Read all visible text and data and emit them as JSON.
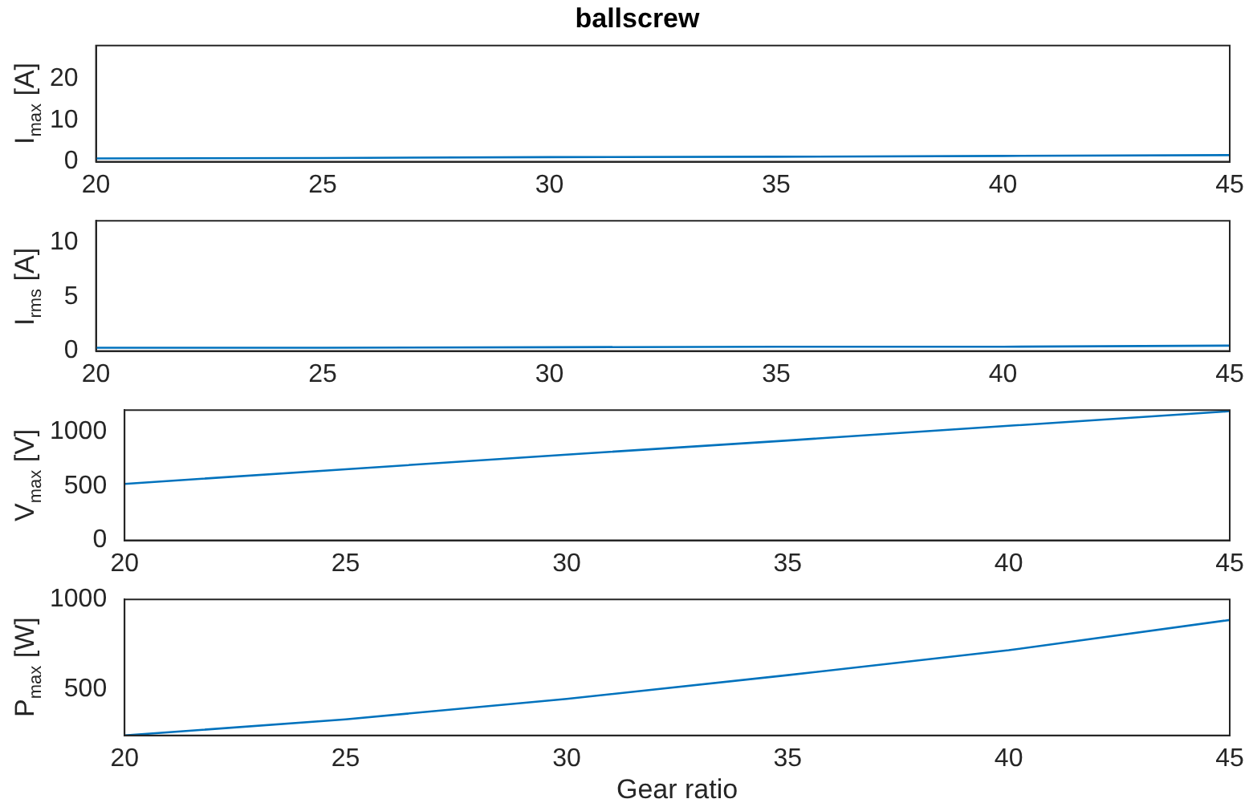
{
  "chart_data": [
    {
      "type": "line",
      "title": "ballscrew",
      "ylabel": "I$_{max}$  [A]",
      "x": [
        20,
        25,
        30,
        35,
        40,
        45
      ],
      "series": [
        {
          "color": "#0072bd",
          "values": [
            0.8,
            0.9,
            1.1,
            1.2,
            1.4,
            1.6
          ]
        }
      ],
      "xlim": [
        20,
        45
      ],
      "xticks": [
        20,
        25,
        30,
        35,
        40,
        45
      ],
      "ylim": [
        0,
        28
      ],
      "yticks": [
        0,
        10,
        20
      ],
      "marker": "none"
    },
    {
      "type": "line",
      "ylabel": "I$_{rms}$  [A]",
      "x": [
        20,
        25,
        30,
        35,
        40,
        45
      ],
      "series": [
        {
          "color": "#0072bd",
          "values": [
            0.3,
            0.3,
            0.35,
            0.4,
            0.4,
            0.5
          ]
        }
      ],
      "xlim": [
        20,
        45
      ],
      "xticks": [
        20,
        25,
        30,
        35,
        40,
        45
      ],
      "ylim": [
        0,
        12
      ],
      "yticks": [
        0,
        5,
        10
      ],
      "marker": "none"
    },
    {
      "type": "line",
      "ylabel": "V$_{max}$  [V]",
      "x": [
        20,
        25,
        30,
        35,
        40,
        45
      ],
      "series": [
        {
          "color": "#0072bd",
          "values": [
            520,
            655,
            790,
            920,
            1055,
            1190
          ]
        }
      ],
      "xlim": [
        20,
        45
      ],
      "xticks": [
        20,
        25,
        30,
        35,
        40,
        45
      ],
      "ylim": [
        0,
        1200
      ],
      "yticks": [
        0,
        500,
        1000
      ],
      "marker": "none"
    },
    {
      "type": "line",
      "ylabel": "P$_{max}$  [W]",
      "xlabel": "Gear ratio",
      "x": [
        20,
        25,
        30,
        35,
        40,
        45
      ],
      "series": [
        {
          "color": "#0072bd",
          "values": [
            240,
            330,
            444,
            577,
            716,
            885
          ]
        }
      ],
      "xlim": [
        20,
        45
      ],
      "xticks": [
        20,
        25,
        30,
        35,
        40,
        45
      ],
      "ylim": [
        240,
        1000
      ],
      "yticks": [
        500,
        1000
      ],
      "marker": "none"
    }
  ]
}
